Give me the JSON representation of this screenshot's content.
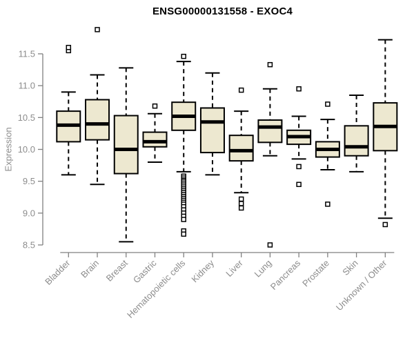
{
  "title": "ENSG00000131558 - EXOC4",
  "chart_data": {
    "type": "boxplot",
    "title": "ENSG00000131558 - EXOC4",
    "xlabel": "",
    "ylabel": "Expression",
    "ylim": [
      8.5,
      11.5
    ],
    "y_ticks": [
      8.5,
      9.0,
      9.5,
      10.0,
      10.5,
      11.0,
      11.5
    ],
    "grid": false,
    "legend": "none",
    "categories": [
      "Bladder",
      "Brain",
      "Breast",
      "Gastric",
      "Hematopoietic cells",
      "Kidney",
      "Liver",
      "Lung",
      "Pancreas",
      "Prostate",
      "Skin",
      "Unknown / Other"
    ],
    "series": [
      {
        "name": "Bladder",
        "whisker_low": 9.6,
        "q1": 10.12,
        "median": 10.38,
        "q3": 10.6,
        "whisker_high": 10.9,
        "outliers": [
          11.55,
          11.6
        ]
      },
      {
        "name": "Brain",
        "whisker_low": 9.45,
        "q1": 10.15,
        "median": 10.4,
        "q3": 10.78,
        "whisker_high": 11.17,
        "outliers": [
          11.88
        ]
      },
      {
        "name": "Breast",
        "whisker_low": 8.55,
        "q1": 9.62,
        "median": 10.0,
        "q3": 10.53,
        "whisker_high": 11.28,
        "outliers": []
      },
      {
        "name": "Gastric",
        "whisker_low": 9.8,
        "q1": 10.04,
        "median": 10.12,
        "q3": 10.27,
        "whisker_high": 10.56,
        "outliers": [
          10.68
        ]
      },
      {
        "name": "Hematopoietic cells",
        "whisker_low": 9.65,
        "q1": 10.3,
        "median": 10.52,
        "q3": 10.74,
        "whisker_high": 11.38,
        "outliers": [
          11.46,
          9.58,
          9.55,
          9.52,
          9.5,
          9.47,
          9.44,
          9.41,
          9.38,
          9.35,
          9.32,
          9.29,
          9.26,
          9.23,
          9.2,
          9.17,
          9.14,
          9.1,
          9.05,
          9.0,
          8.95,
          8.9,
          8.72,
          8.67
        ]
      },
      {
        "name": "Kidney",
        "whisker_low": 9.6,
        "q1": 9.95,
        "median": 10.43,
        "q3": 10.65,
        "whisker_high": 11.2,
        "outliers": []
      },
      {
        "name": "Liver",
        "whisker_low": 9.32,
        "q1": 9.82,
        "median": 9.98,
        "q3": 10.22,
        "whisker_high": 10.6,
        "outliers": [
          10.93,
          9.22,
          9.15,
          9.08
        ]
      },
      {
        "name": "Lung",
        "whisker_low": 9.9,
        "q1": 10.11,
        "median": 10.35,
        "q3": 10.46,
        "whisker_high": 10.95,
        "outliers": [
          11.33,
          8.5
        ]
      },
      {
        "name": "Pancreas",
        "whisker_low": 9.85,
        "q1": 10.08,
        "median": 10.2,
        "q3": 10.3,
        "whisker_high": 10.52,
        "outliers": [
          10.95,
          9.73,
          9.45
        ]
      },
      {
        "name": "Prostate",
        "whisker_low": 9.68,
        "q1": 9.88,
        "median": 10.0,
        "q3": 10.12,
        "whisker_high": 10.47,
        "outliers": [
          10.71,
          9.14
        ]
      },
      {
        "name": "Skin",
        "whisker_low": 9.65,
        "q1": 9.9,
        "median": 10.04,
        "q3": 10.37,
        "whisker_high": 10.85,
        "outliers": []
      },
      {
        "name": "Unknown / Other",
        "whisker_low": 8.92,
        "q1": 9.98,
        "median": 10.36,
        "q3": 10.73,
        "whisker_high": 11.72,
        "outliers": [
          8.82
        ]
      }
    ],
    "colors": {
      "box_fill": "#ede8d0",
      "box_stroke": "#000000",
      "median_stroke": "#000000",
      "whisker_stroke": "#000000",
      "outlier_stroke": "#000000",
      "outlier_fill": "#ffffff",
      "axis": "#808080",
      "tick_label": "#8c8c8c",
      "title": "#000000"
    }
  }
}
